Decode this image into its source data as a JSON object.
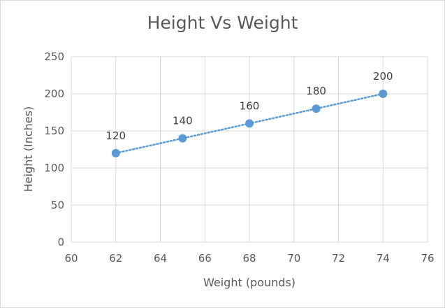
{
  "chart_data": {
    "type": "scatter",
    "title": "Height Vs Weight",
    "xlabel": "Weight (pounds)",
    "ylabel": "Height (Inches)",
    "xlim": [
      60,
      76
    ],
    "ylim": [
      0,
      250
    ],
    "xticks": [
      60,
      62,
      64,
      66,
      68,
      70,
      72,
      74,
      76
    ],
    "yticks": [
      0,
      50,
      100,
      150,
      200,
      250
    ],
    "grid": true,
    "trendline": "linear, dotted",
    "series": [
      {
        "x": [
          62,
          65,
          68,
          71,
          74
        ],
        "y": [
          120,
          140,
          160,
          180,
          200
        ],
        "labels": [
          "120",
          "140",
          "160",
          "180",
          "200"
        ]
      }
    ],
    "colors": {
      "marker": "#5b9bd5",
      "grid": "#d9d9d9",
      "text": "#595959"
    }
  }
}
